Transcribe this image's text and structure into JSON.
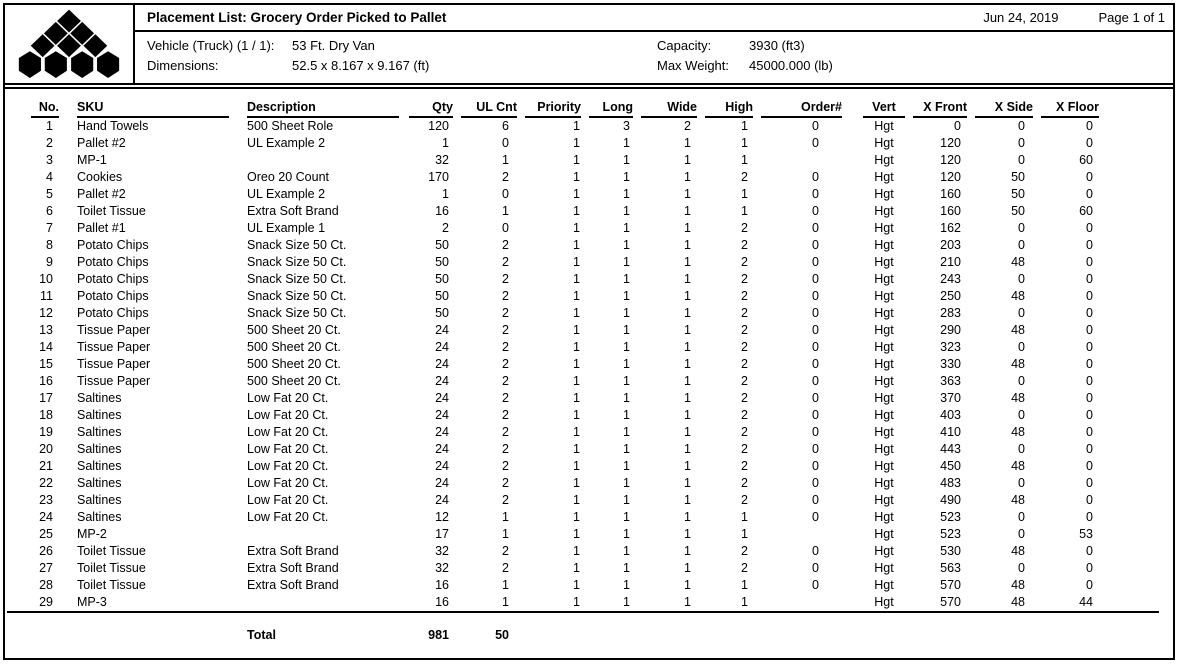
{
  "page": {
    "title": "Placement List: Grocery Order Picked to Pallet",
    "date": "Jun 24, 2019",
    "page_label": "Page 1 of 1",
    "vehicle_label": "Vehicle (Truck) (1 / 1):",
    "vehicle_value": "53 Ft. Dry Van",
    "dimensions_label": "Dimensions:",
    "dimensions_value": "52.5 x 8.167 x 9.167 (ft)",
    "capacity_label": "Capacity:",
    "capacity_value": "3930 (ft3)",
    "max_weight_label": "Max Weight:",
    "max_weight_value": "45000.000 (lb)"
  },
  "logo": {
    "icon": "stacked-boxes-logo",
    "color": "#000000"
  },
  "table": {
    "columns": [
      "No.",
      "SKU",
      "Description",
      "Qty",
      "UL Cnt",
      "Priority",
      "Long",
      "Wide",
      "High",
      "Order#",
      "Vert",
      "X Front",
      "X Side",
      "X Floor"
    ],
    "rows": [
      [
        "1",
        "Hand Towels",
        "500 Sheet Role",
        "120",
        "6",
        "1",
        "3",
        "2",
        "1",
        "0",
        "Hgt",
        "0",
        "0",
        "0"
      ],
      [
        "2",
        "Pallet #2",
        "UL Example 2",
        "1",
        "0",
        "1",
        "1",
        "1",
        "1",
        "0",
        "Hgt",
        "120",
        "0",
        "0"
      ],
      [
        "3",
        "MP-1",
        "",
        "32",
        "1",
        "1",
        "1",
        "1",
        "1",
        "",
        "Hgt",
        "120",
        "0",
        "60"
      ],
      [
        "4",
        "Cookies",
        "Oreo 20 Count",
        "170",
        "2",
        "1",
        "1",
        "1",
        "2",
        "0",
        "Hgt",
        "120",
        "50",
        "0"
      ],
      [
        "5",
        "Pallet #2",
        "UL Example 2",
        "1",
        "0",
        "1",
        "1",
        "1",
        "1",
        "0",
        "Hgt",
        "160",
        "50",
        "0"
      ],
      [
        "6",
        "Toilet Tissue",
        "Extra Soft Brand",
        "16",
        "1",
        "1",
        "1",
        "1",
        "1",
        "0",
        "Hgt",
        "160",
        "50",
        "60"
      ],
      [
        "7",
        "Pallet #1",
        "UL Example 1",
        "2",
        "0",
        "1",
        "1",
        "1",
        "2",
        "0",
        "Hgt",
        "162",
        "0",
        "0"
      ],
      [
        "8",
        "Potato Chips",
        "Snack Size 50 Ct.",
        "50",
        "2",
        "1",
        "1",
        "1",
        "2",
        "0",
        "Hgt",
        "203",
        "0",
        "0"
      ],
      [
        "9",
        "Potato Chips",
        "Snack Size 50 Ct.",
        "50",
        "2",
        "1",
        "1",
        "1",
        "2",
        "0",
        "Hgt",
        "210",
        "48",
        "0"
      ],
      [
        "10",
        "Potato Chips",
        "Snack Size 50 Ct.",
        "50",
        "2",
        "1",
        "1",
        "1",
        "2",
        "0",
        "Hgt",
        "243",
        "0",
        "0"
      ],
      [
        "11",
        "Potato Chips",
        "Snack Size 50 Ct.",
        "50",
        "2",
        "1",
        "1",
        "1",
        "2",
        "0",
        "Hgt",
        "250",
        "48",
        "0"
      ],
      [
        "12",
        "Potato Chips",
        "Snack Size 50 Ct.",
        "50",
        "2",
        "1",
        "1",
        "1",
        "2",
        "0",
        "Hgt",
        "283",
        "0",
        "0"
      ],
      [
        "13",
        "Tissue Paper",
        "500 Sheet 20 Ct.",
        "24",
        "2",
        "1",
        "1",
        "1",
        "2",
        "0",
        "Hgt",
        "290",
        "48",
        "0"
      ],
      [
        "14",
        "Tissue Paper",
        "500 Sheet 20 Ct.",
        "24",
        "2",
        "1",
        "1",
        "1",
        "2",
        "0",
        "Hgt",
        "323",
        "0",
        "0"
      ],
      [
        "15",
        "Tissue Paper",
        "500 Sheet 20 Ct.",
        "24",
        "2",
        "1",
        "1",
        "1",
        "2",
        "0",
        "Hgt",
        "330",
        "48",
        "0"
      ],
      [
        "16",
        "Tissue Paper",
        "500 Sheet 20 Ct.",
        "24",
        "2",
        "1",
        "1",
        "1",
        "2",
        "0",
        "Hgt",
        "363",
        "0",
        "0"
      ],
      [
        "17",
        "Saltines",
        "Low Fat 20 Ct.",
        "24",
        "2",
        "1",
        "1",
        "1",
        "2",
        "0",
        "Hgt",
        "370",
        "48",
        "0"
      ],
      [
        "18",
        "Saltines",
        "Low Fat 20 Ct.",
        "24",
        "2",
        "1",
        "1",
        "1",
        "2",
        "0",
        "Hgt",
        "403",
        "0",
        "0"
      ],
      [
        "19",
        "Saltines",
        "Low Fat 20 Ct.",
        "24",
        "2",
        "1",
        "1",
        "1",
        "2",
        "0",
        "Hgt",
        "410",
        "48",
        "0"
      ],
      [
        "20",
        "Saltines",
        "Low Fat 20 Ct.",
        "24",
        "2",
        "1",
        "1",
        "1",
        "2",
        "0",
        "Hgt",
        "443",
        "0",
        "0"
      ],
      [
        "21",
        "Saltines",
        "Low Fat 20 Ct.",
        "24",
        "2",
        "1",
        "1",
        "1",
        "2",
        "0",
        "Hgt",
        "450",
        "48",
        "0"
      ],
      [
        "22",
        "Saltines",
        "Low Fat 20 Ct.",
        "24",
        "2",
        "1",
        "1",
        "1",
        "2",
        "0",
        "Hgt",
        "483",
        "0",
        "0"
      ],
      [
        "23",
        "Saltines",
        "Low Fat 20 Ct.",
        "24",
        "2",
        "1",
        "1",
        "1",
        "2",
        "0",
        "Hgt",
        "490",
        "48",
        "0"
      ],
      [
        "24",
        "Saltines",
        "Low Fat 20 Ct.",
        "12",
        "1",
        "1",
        "1",
        "1",
        "1",
        "0",
        "Hgt",
        "523",
        "0",
        "0"
      ],
      [
        "25",
        "MP-2",
        "",
        "17",
        "1",
        "1",
        "1",
        "1",
        "1",
        "",
        "Hgt",
        "523",
        "0",
        "53"
      ],
      [
        "26",
        "Toilet Tissue",
        "Extra Soft Brand",
        "32",
        "2",
        "1",
        "1",
        "1",
        "2",
        "0",
        "Hgt",
        "530",
        "48",
        "0"
      ],
      [
        "27",
        "Toilet Tissue",
        "Extra Soft Brand",
        "32",
        "2",
        "1",
        "1",
        "1",
        "2",
        "0",
        "Hgt",
        "563",
        "0",
        "0"
      ],
      [
        "28",
        "Toilet Tissue",
        "Extra Soft Brand",
        "16",
        "1",
        "1",
        "1",
        "1",
        "1",
        "0",
        "Hgt",
        "570",
        "48",
        "0"
      ],
      [
        "29",
        "MP-3",
        "",
        "16",
        "1",
        "1",
        "1",
        "1",
        "1",
        "",
        "Hgt",
        "570",
        "48",
        "44"
      ]
    ],
    "total_label": "Total",
    "total_qty": "981",
    "total_ul_cnt": "50"
  }
}
